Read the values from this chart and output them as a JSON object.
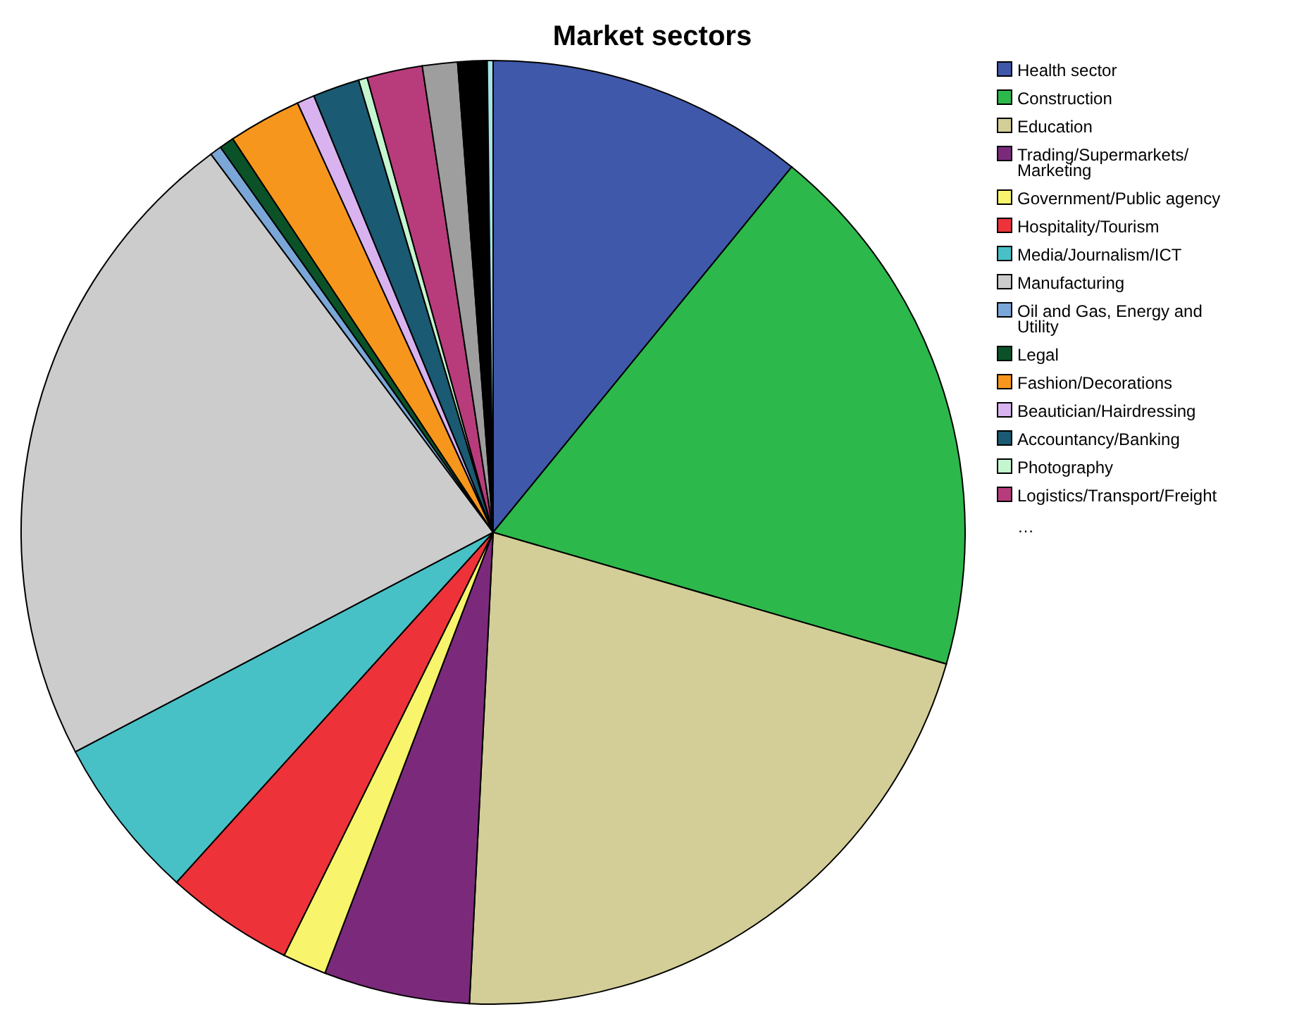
{
  "chart_data": {
    "type": "pie",
    "title": "Market sectors",
    "categories": [
      "Health sector",
      "Construction",
      "Education",
      "Trading/Supermarkets/Marketing",
      "Government/Public agency",
      "Hospitality/Tourism",
      "Media/Journalism/ICT",
      "Manufacturing",
      "Oil and Gas, Energy and Utility",
      "Legal",
      "Fashion/Decorations",
      "Beautician/Hairdressing",
      "Accountancy/Banking",
      "Photography",
      "Logistics/Transport/Freight",
      null,
      null,
      null
    ],
    "values": [
      10.9,
      18.6,
      21.3,
      5.0,
      1.5,
      4.4,
      5.6,
      22.5,
      0.4,
      0.5,
      2.5,
      0.6,
      1.6,
      0.3,
      1.9,
      1.2,
      1.0,
      0.2
    ],
    "colors": [
      "#3f58aa",
      "#2db84b",
      "#d3ce97",
      "#7b2a7b",
      "#f8f46b",
      "#ee3239",
      "#48c1c6",
      "#cccccc",
      "#7aa7d8",
      "#0b5228",
      "#f7961d",
      "#d9b3ef",
      "#1a5a72",
      "#c4f6cf",
      "#b83c7c",
      "#9e9e9e",
      "#000000",
      "#a4e4e4"
    ],
    "legend": "right",
    "annotations": [
      "…"
    ]
  }
}
